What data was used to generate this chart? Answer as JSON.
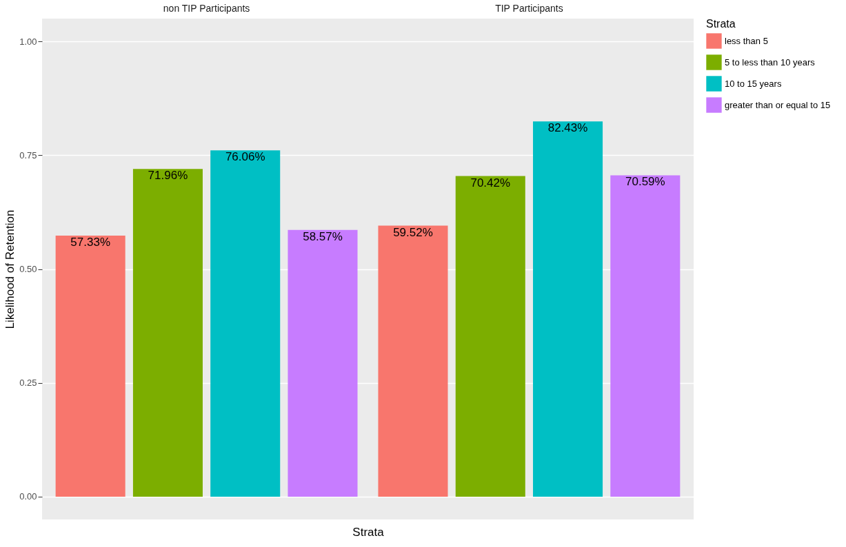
{
  "chart_data": {
    "type": "bar",
    "ylabel": "Likelihood of Retention",
    "xlabel": "Strata",
    "legend_title": "Strata",
    "legend": "right",
    "categories": [
      "non TIP Participants",
      "TIP Participants"
    ],
    "series": [
      {
        "name": "less than 5",
        "color": "#f8766d",
        "values": [
          0.5733,
          0.5952
        ],
        "value_labels": [
          "57.33%",
          "59.52%"
        ]
      },
      {
        "name": "5 to less than 10 years",
        "color": "#7cae00",
        "values": [
          0.7196,
          0.7042
        ],
        "value_labels": [
          "71.96%",
          "70.42%"
        ]
      },
      {
        "name": "10 to 15 years",
        "color": "#00bfc4",
        "values": [
          0.7606,
          0.8243
        ],
        "value_labels": [
          "76.06%",
          "82.43%"
        ]
      },
      {
        "name": "greater than or equal to 15",
        "color": "#c77cff",
        "values": [
          0.5857,
          0.7059
        ],
        "value_labels": [
          "58.57%",
          "70.59%"
        ]
      }
    ],
    "ylim": [
      -0.05,
      1.05
    ],
    "yticks": [
      {
        "value": 0,
        "label": "0.00"
      },
      {
        "value": 0.25,
        "label": "0.25"
      },
      {
        "value": 0.5,
        "label": "0.50"
      },
      {
        "value": 0.75,
        "label": "0.75"
      },
      {
        "value": 1,
        "label": "1.00"
      }
    ],
    "grid": true
  }
}
